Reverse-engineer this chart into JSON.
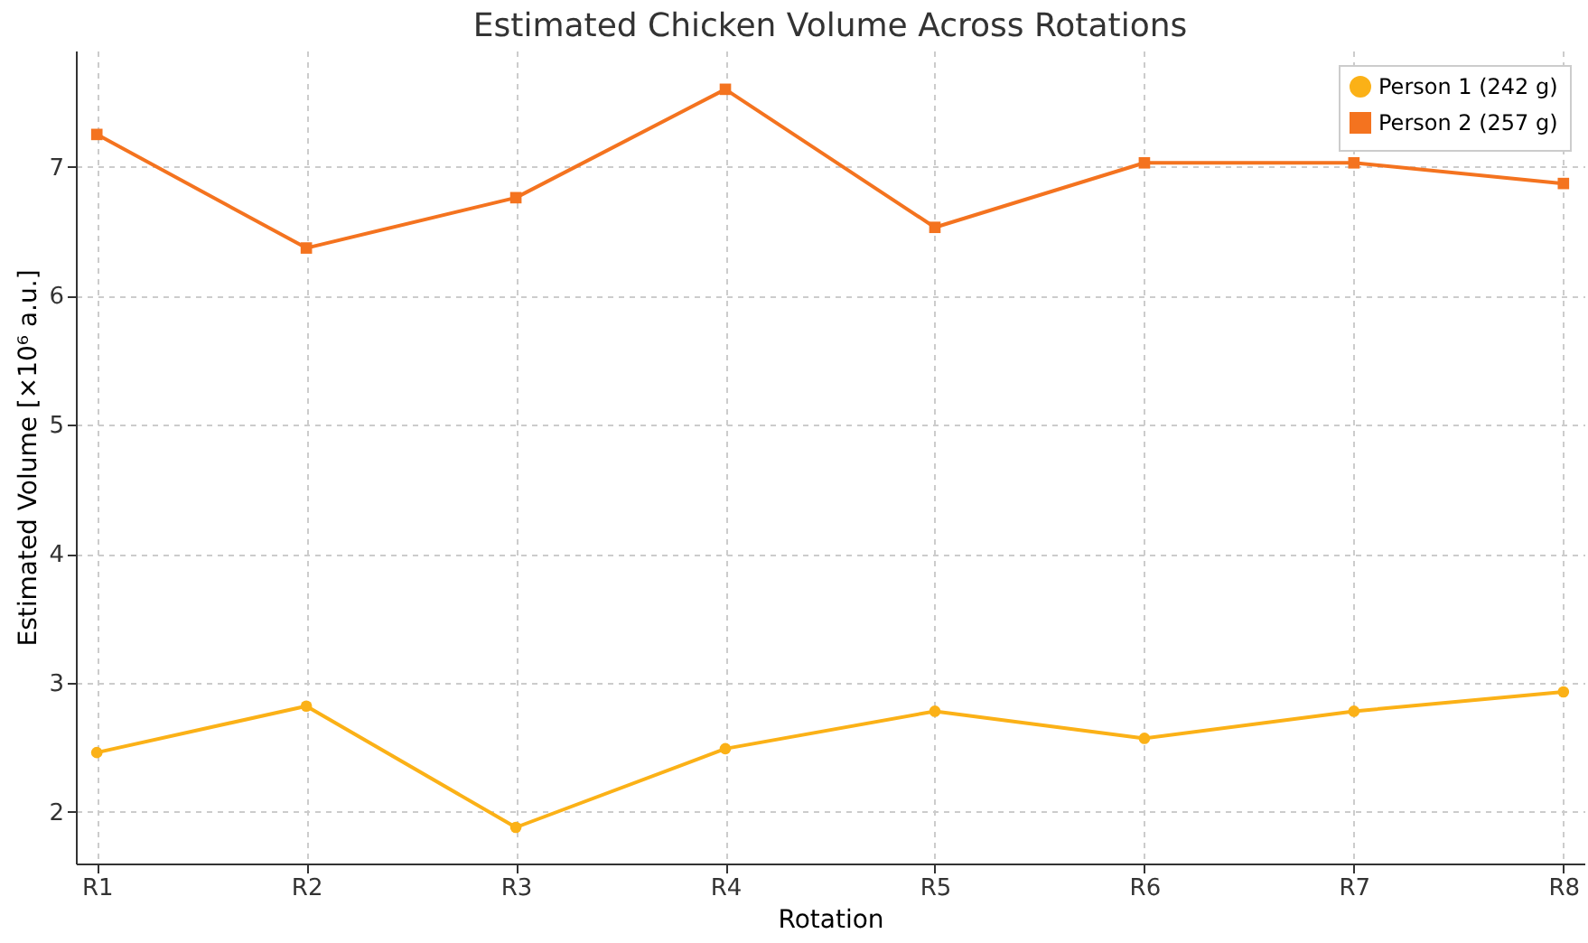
{
  "chart_data": {
    "type": "line",
    "title": "Estimated Chicken Volume Across Rotations",
    "xlabel": "Rotation",
    "ylabel": "Estimated Volume [×10⁶ a.u.]",
    "categories": [
      "R1",
      "R2",
      "R3",
      "R4",
      "R5",
      "R6",
      "R7",
      "R8"
    ],
    "series": [
      {
        "name": "Person 1 (242 g)",
        "color": "#fbb117",
        "marker": "circle",
        "values": [
          2.46,
          2.82,
          1.88,
          2.49,
          2.78,
          2.57,
          2.78,
          2.93
        ]
      },
      {
        "name": "Person 2 (257 g)",
        "color": "#f4731f",
        "marker": "square",
        "values": [
          7.25,
          6.37,
          6.76,
          7.6,
          6.53,
          7.03,
          7.03,
          6.87
        ]
      }
    ],
    "ylim": [
      1.6,
      7.9
    ],
    "yticks": [
      2,
      3,
      4,
      5,
      6,
      7
    ],
    "grid": true,
    "legend": "top right",
    "line_style": "solid"
  }
}
